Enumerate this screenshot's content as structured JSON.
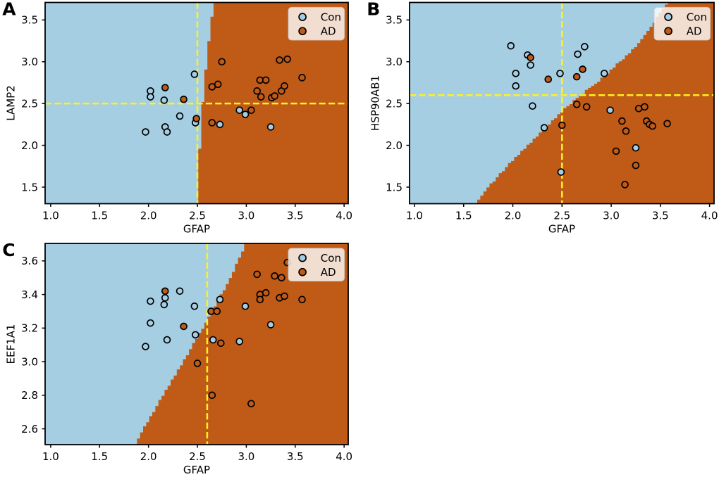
{
  "figure_title": "SVM decision boundary scatter panels",
  "legend": {
    "con_label": "Con",
    "ad_label": "AD"
  },
  "colors": {
    "region_con": "#a6cee3",
    "region_ad": "#bf5b17",
    "marker_con": "#a6cee3",
    "marker_ad": "#bf5b17",
    "marker_edge": "#000000",
    "crosshair": "#fdf21e",
    "legend_face": "#f2ded0",
    "legend_edge": "#cccccc",
    "axis": "#000000",
    "background": "#ffffff"
  },
  "chart_data": [
    {
      "type": "scatter",
      "panel_label": "A",
      "xlabel": "GFAP",
      "ylabel": "LAMP2",
      "xlim": [
        0.943,
        4.042
      ],
      "ylim": [
        1.302,
        3.709
      ],
      "xticks": [
        "1.0",
        "1.5",
        "2.0",
        "2.5",
        "3.0",
        "3.5",
        "4.0"
      ],
      "yticks": [
        "1.5",
        "2.0",
        "2.5",
        "3.0",
        "3.5"
      ],
      "legend": [
        "Con",
        "AD"
      ],
      "crosshair": {
        "x": 2.5,
        "y": 2.5
      },
      "boundary_x_at_y": [
        [
          1.3,
          2.505
        ],
        [
          1.4,
          2.507
        ],
        [
          1.501,
          2.509
        ],
        [
          1.601,
          2.512
        ],
        [
          1.702,
          2.515
        ],
        [
          1.802,
          2.518
        ],
        [
          1.903,
          2.522
        ],
        [
          2.003,
          2.526
        ],
        [
          2.103,
          2.531
        ],
        [
          2.204,
          2.536
        ],
        [
          2.304,
          2.542
        ],
        [
          2.405,
          2.548
        ],
        [
          2.505,
          2.555
        ],
        [
          2.605,
          2.562
        ],
        [
          2.706,
          2.57
        ],
        [
          2.806,
          2.578
        ],
        [
          2.907,
          2.586
        ],
        [
          3.007,
          2.595
        ],
        [
          3.107,
          2.604
        ],
        [
          3.208,
          2.614
        ],
        [
          3.308,
          2.624
        ],
        [
          3.409,
          2.635
        ],
        [
          3.509,
          2.646
        ],
        [
          3.61,
          2.658
        ],
        [
          3.71,
          2.67
        ]
      ],
      "series": [
        {
          "name": "Con",
          "points": [
            [
              1.97,
              2.16
            ],
            [
              2.02,
              2.65
            ],
            [
              2.02,
              2.58
            ],
            [
              2.16,
              2.54
            ],
            [
              2.17,
              2.22
            ],
            [
              2.19,
              2.16
            ],
            [
              2.32,
              2.35
            ],
            [
              2.47,
              2.85
            ],
            [
              2.48,
              2.27
            ],
            [
              2.73,
              2.25
            ],
            [
              2.93,
              2.42
            ],
            [
              2.99,
              2.37
            ],
            [
              3.25,
              2.22
            ]
          ]
        },
        {
          "name": "AD",
          "points": [
            [
              2.17,
              2.69
            ],
            [
              2.36,
              2.55
            ],
            [
              2.49,
              2.32
            ],
            [
              2.65,
              2.7
            ],
            [
              2.65,
              2.27
            ],
            [
              2.71,
              2.73
            ],
            [
              2.75,
              3.0
            ],
            [
              3.05,
              2.42
            ],
            [
              3.11,
              2.65
            ],
            [
              3.14,
              2.78
            ],
            [
              3.15,
              2.58
            ],
            [
              3.2,
              2.78
            ],
            [
              3.26,
              2.57
            ],
            [
              3.29,
              2.59
            ],
            [
              3.34,
              3.02
            ],
            [
              3.36,
              2.65
            ],
            [
              3.39,
              2.71
            ],
            [
              3.42,
              3.03
            ],
            [
              3.57,
              2.81
            ]
          ]
        }
      ]
    },
    {
      "type": "scatter",
      "panel_label": "B",
      "xlabel": "GFAP",
      "ylabel": "HSP90AB1",
      "xlim": [
        0.95,
        4.046
      ],
      "ylim": [
        1.302,
        3.709
      ],
      "xticks": [
        "1.0",
        "1.5",
        "2.0",
        "2.5",
        "3.0",
        "3.5",
        "4.0"
      ],
      "yticks": [
        "1.5",
        "2.0",
        "2.5",
        "3.0",
        "3.5"
      ],
      "legend": [
        "Con",
        "AD"
      ],
      "crosshair": {
        "x": 2.5,
        "y": 2.6
      },
      "boundary_x_at_y": [
        [
          1.302,
          1.624
        ],
        [
          1.402,
          1.688
        ],
        [
          1.503,
          1.755
        ],
        [
          1.603,
          1.827
        ],
        [
          1.703,
          1.905
        ],
        [
          1.803,
          1.988
        ],
        [
          1.904,
          2.074
        ],
        [
          2.004,
          2.161
        ],
        [
          2.104,
          2.246
        ],
        [
          2.205,
          2.329
        ],
        [
          2.305,
          2.413
        ],
        [
          2.405,
          2.501
        ],
        [
          2.506,
          2.594
        ],
        [
          2.606,
          2.696
        ],
        [
          2.706,
          2.804
        ],
        [
          2.806,
          2.909
        ],
        [
          2.907,
          3.005
        ],
        [
          3.007,
          3.097
        ],
        [
          3.107,
          3.186
        ],
        [
          3.208,
          3.268
        ],
        [
          3.308,
          3.342
        ],
        [
          3.408,
          3.403
        ],
        [
          3.508,
          3.457
        ],
        [
          3.609,
          3.513
        ],
        [
          3.709,
          3.569
        ]
      ],
      "series": [
        {
          "name": "Con",
          "points": [
            [
              1.98,
              3.19
            ],
            [
              2.03,
              2.86
            ],
            [
              2.03,
              2.71
            ],
            [
              2.15,
              3.08
            ],
            [
              2.18,
              2.96
            ],
            [
              2.2,
              2.47
            ],
            [
              2.32,
              2.21
            ],
            [
              2.48,
              2.86
            ],
            [
              2.49,
              1.68
            ],
            [
              2.66,
              3.09
            ],
            [
              2.73,
              3.18
            ],
            [
              2.93,
              2.86
            ],
            [
              2.99,
              2.42
            ],
            [
              3.25,
              1.97
            ]
          ]
        },
        {
          "name": "AD",
          "points": [
            [
              2.18,
              3.05
            ],
            [
              2.36,
              2.79
            ],
            [
              2.5,
              2.24
            ],
            [
              2.65,
              2.82
            ],
            [
              2.65,
              2.49
            ],
            [
              2.71,
              2.91
            ],
            [
              2.75,
              2.46
            ],
            [
              3.05,
              1.93
            ],
            [
              3.11,
              2.29
            ],
            [
              3.14,
              1.53
            ],
            [
              3.15,
              2.17
            ],
            [
              3.25,
              1.76
            ],
            [
              3.28,
              2.44
            ],
            [
              3.34,
              2.46
            ],
            [
              3.36,
              2.29
            ],
            [
              3.39,
              2.25
            ],
            [
              3.42,
              2.23
            ],
            [
              3.57,
              2.26
            ]
          ]
        }
      ]
    },
    {
      "type": "scatter",
      "panel_label": "C",
      "xlabel": "GFAP",
      "ylabel": "EEF1A1",
      "xlim": [
        0.943,
        4.042
      ],
      "ylim": [
        2.506,
        3.704
      ],
      "xticks": [
        "1.0",
        "1.5",
        "2.0",
        "2.5",
        "3.0",
        "3.5",
        "4.0"
      ],
      "yticks": [
        "2.6",
        "2.8",
        "3.0",
        "3.2",
        "3.4",
        "3.6"
      ],
      "legend": [
        "Con",
        "AD"
      ],
      "crosshair": {
        "x": 2.6
      },
      "boundary_x_at_y": [
        [
          2.506,
          1.863
        ],
        [
          2.556,
          1.91
        ],
        [
          2.606,
          1.957
        ],
        [
          2.656,
          2.006
        ],
        [
          2.706,
          2.055
        ],
        [
          2.756,
          2.105
        ],
        [
          2.805,
          2.155
        ],
        [
          2.855,
          2.206
        ],
        [
          2.905,
          2.257
        ],
        [
          2.955,
          2.308
        ],
        [
          3.005,
          2.359
        ],
        [
          3.055,
          2.41
        ],
        [
          3.105,
          2.46
        ],
        [
          3.155,
          2.51
        ],
        [
          3.205,
          2.56
        ],
        [
          3.255,
          2.609
        ],
        [
          3.305,
          2.657
        ],
        [
          3.355,
          2.704
        ],
        [
          3.405,
          2.75
        ],
        [
          3.454,
          2.795
        ],
        [
          3.504,
          2.839
        ],
        [
          3.554,
          2.881
        ],
        [
          3.604,
          2.921
        ],
        [
          3.654,
          2.96
        ],
        [
          3.704,
          2.997
        ]
      ],
      "series": [
        {
          "name": "Con",
          "points": [
            [
              1.97,
              3.09
            ],
            [
              2.02,
              3.36
            ],
            [
              2.02,
              3.23
            ],
            [
              2.16,
              3.34
            ],
            [
              2.17,
              3.38
            ],
            [
              2.19,
              3.13
            ],
            [
              2.32,
              3.42
            ],
            [
              2.47,
              3.33
            ],
            [
              2.48,
              3.16
            ],
            [
              2.66,
              3.13
            ],
            [
              2.73,
              3.37
            ],
            [
              2.93,
              3.12
            ],
            [
              2.99,
              3.33
            ],
            [
              3.25,
              3.22
            ]
          ]
        },
        {
          "name": "AD",
          "points": [
            [
              2.17,
              3.42
            ],
            [
              2.36,
              3.21
            ],
            [
              2.5,
              2.99
            ],
            [
              2.64,
              3.3
            ],
            [
              2.65,
              2.8
            ],
            [
              2.7,
              3.3
            ],
            [
              2.74,
              3.11
            ],
            [
              3.05,
              2.75
            ],
            [
              3.11,
              3.52
            ],
            [
              3.14,
              3.4
            ],
            [
              3.14,
              3.37
            ],
            [
              3.2,
              3.41
            ],
            [
              3.29,
              3.51
            ],
            [
              3.34,
              3.38
            ],
            [
              3.36,
              3.5
            ],
            [
              3.39,
              3.39
            ],
            [
              3.42,
              3.59
            ],
            [
              3.57,
              3.37
            ]
          ]
        }
      ]
    }
  ]
}
